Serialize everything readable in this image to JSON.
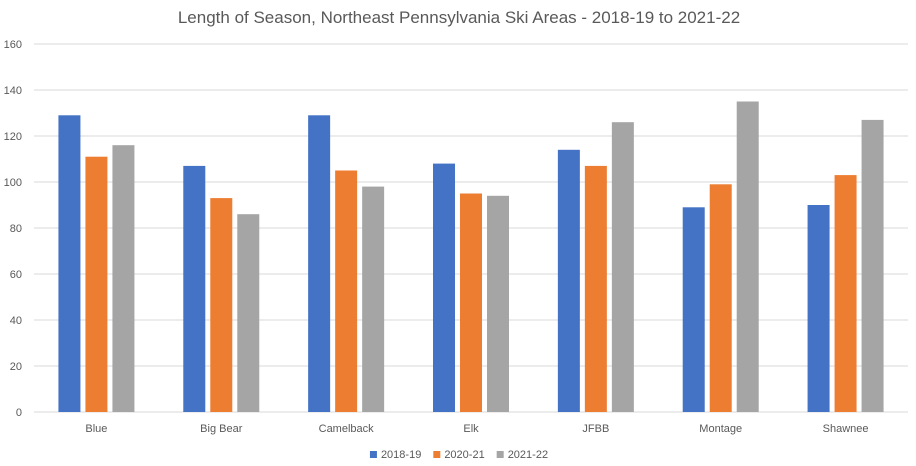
{
  "chart_data": {
    "type": "bar",
    "title": "Length of Season, Northeast Pennsylvania Ski Areas - 2018-19 to 2021-22",
    "xlabel": "",
    "ylabel": "",
    "ylim": [
      0,
      160
    ],
    "yticks": [
      0,
      20,
      40,
      60,
      80,
      100,
      120,
      140,
      160
    ],
    "grid": true,
    "legend_position": "bottom",
    "categories": [
      "Blue",
      "Big Bear",
      "Camelback",
      "Elk",
      "JFBB",
      "Montage",
      "Shawnee"
    ],
    "series": [
      {
        "name": "2018-19",
        "color": "#4472c4",
        "values": [
          129,
          107,
          129,
          108,
          114,
          89,
          90
        ]
      },
      {
        "name": "2020-21",
        "color": "#ed7d31",
        "values": [
          111,
          93,
          105,
          95,
          107,
          99,
          103
        ]
      },
      {
        "name": "2021-22",
        "color": "#a5a5a5",
        "values": [
          116,
          86,
          98,
          94,
          126,
          135,
          127
        ]
      }
    ]
  }
}
